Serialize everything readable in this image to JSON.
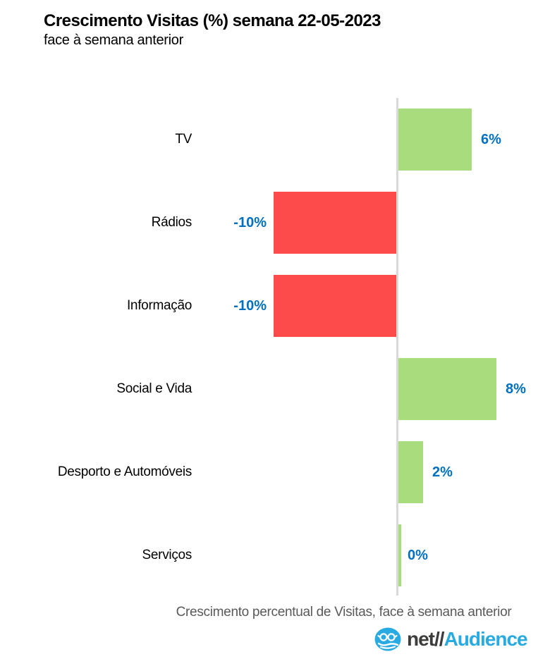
{
  "chart_data": {
    "type": "bar",
    "orientation": "horizontal",
    "title": "Crescimento Visitas (%) semana 22-05-2023",
    "subtitle": "face à semana anterior",
    "categories": [
      "TV",
      "Rádios",
      "Informação",
      "Social e Vida",
      "Desporto e Automóveis",
      "Serviços"
    ],
    "values": [
      6,
      -10,
      -10,
      8,
      2,
      0
    ],
    "value_labels": [
      "6%",
      "-10%",
      "-10%",
      "8%",
      "2%",
      "0%"
    ],
    "xlabel": "Crescimento percentual de Visitas, face à semana anterior",
    "xlim": [
      -12,
      12
    ],
    "grid": false,
    "legend": false,
    "colors": {
      "positive": "#A9DC7C",
      "negative": "#FD4B4B",
      "value_label": "#0070C0",
      "axis_line": "#D9D9D9",
      "xlabel_color": "#595959",
      "category_label": "#000000"
    }
  },
  "branding": {
    "logo_icon": "netaudience-badge-icon",
    "net": "net",
    "slashes": "//",
    "audience": "Audience",
    "logo_blue": "#29ABE2",
    "logo_dark": "#3C3C3B"
  }
}
